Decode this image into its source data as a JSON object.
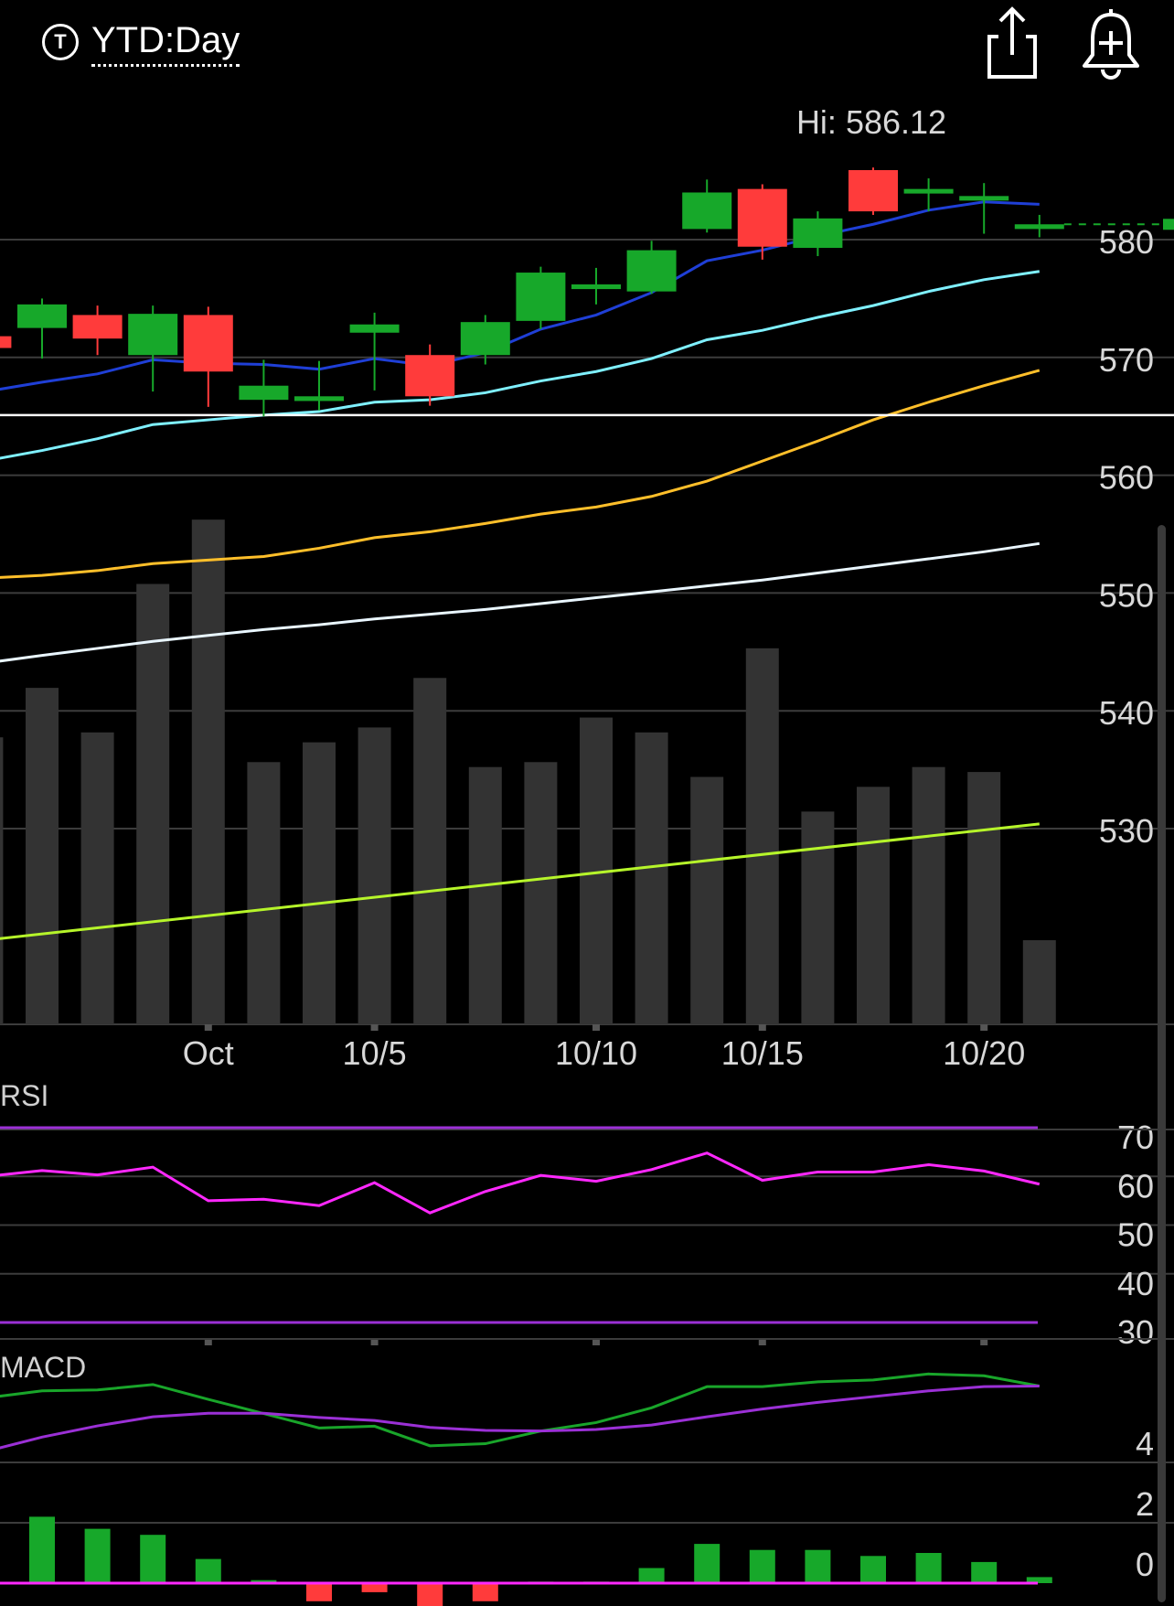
{
  "header": {
    "ticker_icon_letter": "T",
    "period_label": "YTD:Day",
    "share_icon": "share-icon",
    "alert_icon": "add-alert-bell-icon"
  },
  "colors": {
    "up": "#17a82a",
    "down": "#ff3b3b",
    "ma_short": "#1f3fd6",
    "ma_mid": "#7ff0ff",
    "ma_long": "#ffbf2a",
    "ma_longer": "#e9f6ff",
    "ma_longest": "#b6f52a",
    "volume": "#333333",
    "rsi_line": "#ff28ff",
    "rsi_bounds": "#9b30d6",
    "macd_line": "#19a52a",
    "macd_signal": "#9b30d6",
    "macd_zero": "#ff28ff",
    "grid": "#3c3c3c"
  },
  "chart_data": [
    {
      "type": "candlestick",
      "high_label": "Hi: 586.12",
      "x_ticks": [
        {
          "label": "Oct",
          "index": 3
        },
        {
          "label": "10/5",
          "index": 6
        },
        {
          "label": "10/10",
          "index": 10
        },
        {
          "label": "10/15",
          "index": 13
        },
        {
          "label": "10/20",
          "index": 17
        }
      ],
      "y_ticks": [
        580,
        570,
        560,
        550,
        540,
        530
      ],
      "ylim": [
        521.6,
        590.7
      ],
      "reference_line": 565.1,
      "candles": [
        {
          "index": -1,
          "open": 571.8,
          "close": 570.8,
          "high": 572.2,
          "low": 570.3
        },
        {
          "index": 0,
          "open": 572.5,
          "close": 574.5,
          "high": 575.0,
          "low": 569.9
        },
        {
          "index": 1,
          "open": 573.6,
          "close": 571.6,
          "high": 574.4,
          "low": 570.2
        },
        {
          "index": 2,
          "open": 570.2,
          "close": 573.7,
          "high": 574.4,
          "low": 567.1
        },
        {
          "index": 3,
          "open": 573.6,
          "close": 568.8,
          "high": 574.3,
          "low": 565.8
        },
        {
          "index": 4,
          "open": 566.4,
          "close": 567.6,
          "high": 569.8,
          "low": 565.0
        },
        {
          "index": 5,
          "open": 566.3,
          "close": 566.7,
          "high": 569.7,
          "low": 565.5
        },
        {
          "index": 6,
          "open": 572.1,
          "close": 572.8,
          "high": 573.8,
          "low": 567.2
        },
        {
          "index": 7,
          "open": 570.2,
          "close": 566.7,
          "high": 571.1,
          "low": 565.9
        },
        {
          "index": 8,
          "open": 570.2,
          "close": 573.0,
          "high": 573.6,
          "low": 569.4
        },
        {
          "index": 9,
          "open": 573.1,
          "close": 577.2,
          "high": 577.7,
          "low": 572.4
        },
        {
          "index": 10,
          "open": 575.8,
          "close": 576.2,
          "high": 577.6,
          "low": 574.5
        },
        {
          "index": 11,
          "open": 575.6,
          "close": 579.1,
          "high": 579.9,
          "low": 575.4
        },
        {
          "index": 12,
          "open": 580.9,
          "close": 584.0,
          "high": 585.1,
          "low": 580.6
        },
        {
          "index": 13,
          "open": 584.3,
          "close": 579.4,
          "high": 584.7,
          "low": 578.3
        },
        {
          "index": 14,
          "open": 579.3,
          "close": 581.8,
          "high": 582.4,
          "low": 578.6
        },
        {
          "index": 15,
          "open": 585.9,
          "close": 582.4,
          "high": 586.12,
          "low": 582.1
        },
        {
          "index": 16,
          "open": 584.0,
          "close": 584.3,
          "high": 585.2,
          "low": 582.4
        },
        {
          "index": 17,
          "open": 583.7,
          "close": 583.7,
          "high": 584.8,
          "low": 580.5
        },
        {
          "index": 18,
          "open": 580.9,
          "close": 581.3,
          "high": 582.1,
          "low": 580.2
        }
      ],
      "last_price": 581.3,
      "moving_averages": [
        {
          "color_key": "ma_short",
          "points": [
            [
              -1.27,
              566.9
            ],
            [
              0,
              567.9
            ],
            [
              1,
              568.6
            ],
            [
              2,
              569.8
            ],
            [
              3,
              569.5
            ],
            [
              4,
              569.4
            ],
            [
              5,
              569.0
            ],
            [
              6,
              569.9
            ],
            [
              7,
              569.3
            ],
            [
              8,
              570.4
            ],
            [
              9,
              572.4
            ],
            [
              10,
              573.6
            ],
            [
              11,
              575.5
            ],
            [
              12,
              578.2
            ],
            [
              13,
              579.1
            ],
            [
              14,
              580.3
            ],
            [
              15,
              581.3
            ],
            [
              16,
              582.5
            ],
            [
              17,
              583.2
            ],
            [
              18,
              583.0
            ]
          ]
        },
        {
          "color_key": "ma_mid",
          "points": [
            [
              -1.27,
              561.0
            ],
            [
              0,
              562.1
            ],
            [
              1,
              563.1
            ],
            [
              2,
              564.3
            ],
            [
              3,
              564.7
            ],
            [
              4,
              565.1
            ],
            [
              5,
              565.4
            ],
            [
              6,
              566.2
            ],
            [
              7,
              566.4
            ],
            [
              8,
              567.0
            ],
            [
              9,
              568.0
            ],
            [
              10,
              568.8
            ],
            [
              11,
              569.9
            ],
            [
              12,
              571.5
            ],
            [
              13,
              572.3
            ],
            [
              14,
              573.4
            ],
            [
              15,
              574.4
            ],
            [
              16,
              575.6
            ],
            [
              17,
              576.6
            ],
            [
              18,
              577.3
            ]
          ]
        },
        {
          "color_key": "ma_long",
          "points": [
            [
              -1.27,
              551.2
            ],
            [
              0,
              551.5
            ],
            [
              1,
              551.9
            ],
            [
              2,
              552.5
            ],
            [
              3,
              552.8
            ],
            [
              4,
              553.1
            ],
            [
              5,
              553.8
            ],
            [
              6,
              554.7
            ],
            [
              7,
              555.2
            ],
            [
              8,
              555.9
            ],
            [
              9,
              556.7
            ],
            [
              10,
              557.3
            ],
            [
              11,
              558.2
            ],
            [
              12,
              559.5
            ],
            [
              13,
              561.2
            ],
            [
              14,
              562.9
            ],
            [
              15,
              564.7
            ],
            [
              16,
              566.2
            ],
            [
              17,
              567.6
            ],
            [
              18,
              568.9
            ]
          ]
        },
        {
          "color_key": "ma_longer",
          "points": [
            [
              -1.27,
              543.9
            ],
            [
              0,
              544.7
            ],
            [
              1,
              545.3
            ],
            [
              2,
              545.9
            ],
            [
              3,
              546.4
            ],
            [
              4,
              546.9
            ],
            [
              5,
              547.3
            ],
            [
              6,
              547.8
            ],
            [
              7,
              548.2
            ],
            [
              8,
              548.6
            ],
            [
              9,
              549.1
            ],
            [
              10,
              549.6
            ],
            [
              11,
              550.1
            ],
            [
              12,
              550.6
            ],
            [
              13,
              551.1
            ],
            [
              14,
              551.7
            ],
            [
              15,
              552.3
            ],
            [
              16,
              552.9
            ],
            [
              17,
              553.5
            ],
            [
              18,
              554.2
            ]
          ]
        },
        {
          "color_key": "ma_longest",
          "points": [
            [
              -1.27,
              520.4
            ],
            [
              18,
              530.4
            ]
          ]
        }
      ]
    },
    {
      "type": "bar",
      "name": "volume",
      "ylim": [
        0,
        100
      ],
      "values": [
        {
          "index": -1,
          "v": 58
        },
        {
          "index": 0,
          "v": 68
        },
        {
          "index": 1,
          "v": 59
        },
        {
          "index": 2,
          "v": 89
        },
        {
          "index": 3,
          "v": 102
        },
        {
          "index": 4,
          "v": 53
        },
        {
          "index": 5,
          "v": 57
        },
        {
          "index": 6,
          "v": 60
        },
        {
          "index": 7,
          "v": 70
        },
        {
          "index": 8,
          "v": 52
        },
        {
          "index": 9,
          "v": 53
        },
        {
          "index": 10,
          "v": 62
        },
        {
          "index": 11,
          "v": 59
        },
        {
          "index": 12,
          "v": 50
        },
        {
          "index": 13,
          "v": 76
        },
        {
          "index": 14,
          "v": 43
        },
        {
          "index": 15,
          "v": 48
        },
        {
          "index": 16,
          "v": 52
        },
        {
          "index": 17,
          "v": 51
        },
        {
          "index": 18,
          "v": 17
        }
      ]
    },
    {
      "type": "line",
      "name": "RSI",
      "title": "RSI",
      "y_ticks": [
        70,
        60,
        50,
        40,
        30
      ],
      "ylim": [
        30,
        70
      ],
      "bounds": [
        70,
        30
      ],
      "values": [
        [
          -1,
          60.0
        ],
        [
          0,
          61.2
        ],
        [
          1,
          60.3
        ],
        [
          2,
          61.9
        ],
        [
          3,
          55.0
        ],
        [
          4,
          55.3
        ],
        [
          5,
          54.0
        ],
        [
          6,
          58.7
        ],
        [
          7,
          52.5
        ],
        [
          8,
          56.9
        ],
        [
          9,
          60.2
        ],
        [
          10,
          59.0
        ],
        [
          11,
          61.4
        ],
        [
          12,
          64.8
        ],
        [
          13,
          59.2
        ],
        [
          14,
          60.9
        ],
        [
          15,
          60.9
        ],
        [
          16,
          62.4
        ],
        [
          17,
          61.1
        ],
        [
          18,
          58.4
        ]
      ]
    },
    {
      "type": "line",
      "name": "MACD",
      "title": "MACD",
      "y_ticks": [
        4,
        2,
        0
      ],
      "ylim": [
        0,
        4
      ],
      "series": [
        {
          "color_key": "macd_line",
          "values": [
            [
              -1,
              6.14
            ],
            [
              0,
              6.37
            ],
            [
              1,
              6.4
            ],
            [
              2,
              6.58
            ],
            [
              3,
              6.09
            ],
            [
              4,
              5.62
            ],
            [
              5,
              5.14
            ],
            [
              6,
              5.2
            ],
            [
              7,
              4.55
            ],
            [
              8,
              4.62
            ],
            [
              9,
              5.04
            ],
            [
              10,
              5.32
            ],
            [
              11,
              5.81
            ],
            [
              12,
              6.51
            ],
            [
              13,
              6.51
            ],
            [
              14,
              6.67
            ],
            [
              15,
              6.73
            ],
            [
              16,
              6.93
            ],
            [
              17,
              6.87
            ],
            [
              18,
              6.53
            ]
          ]
        },
        {
          "color_key": "macd_signal",
          "values": [
            [
              -1,
              4.37
            ],
            [
              0,
              4.84
            ],
            [
              1,
              5.21
            ],
            [
              2,
              5.51
            ],
            [
              3,
              5.63
            ],
            [
              4,
              5.63
            ],
            [
              5,
              5.49
            ],
            [
              6,
              5.39
            ],
            [
              7,
              5.16
            ],
            [
              8,
              5.06
            ],
            [
              9,
              5.04
            ],
            [
              10,
              5.09
            ],
            [
              11,
              5.24
            ],
            [
              12,
              5.51
            ],
            [
              13,
              5.77
            ],
            [
              14,
              5.99
            ],
            [
              15,
              6.18
            ],
            [
              16,
              6.37
            ],
            [
              17,
              6.51
            ],
            [
              18,
              6.53
            ]
          ]
        }
      ],
      "histogram": [
        {
          "index": 0,
          "v": 2.2
        },
        {
          "index": 1,
          "v": 1.8
        },
        {
          "index": 2,
          "v": 1.6
        },
        {
          "index": 3,
          "v": 0.8
        },
        {
          "index": 4,
          "v": 0.1
        },
        {
          "index": 5,
          "v": -0.6
        },
        {
          "index": 6,
          "v": -0.3
        },
        {
          "index": 7,
          "v": -0.9
        },
        {
          "index": 8,
          "v": -0.6
        },
        {
          "index": 9,
          "v": 0.05
        },
        {
          "index": 10,
          "v": 0.05
        },
        {
          "index": 11,
          "v": 0.5
        },
        {
          "index": 12,
          "v": 1.3
        },
        {
          "index": 13,
          "v": 1.1
        },
        {
          "index": 14,
          "v": 1.1
        },
        {
          "index": 15,
          "v": 0.9
        },
        {
          "index": 16,
          "v": 1.0
        },
        {
          "index": 17,
          "v": 0.7
        },
        {
          "index": 18,
          "v": 0.2
        }
      ]
    }
  ]
}
